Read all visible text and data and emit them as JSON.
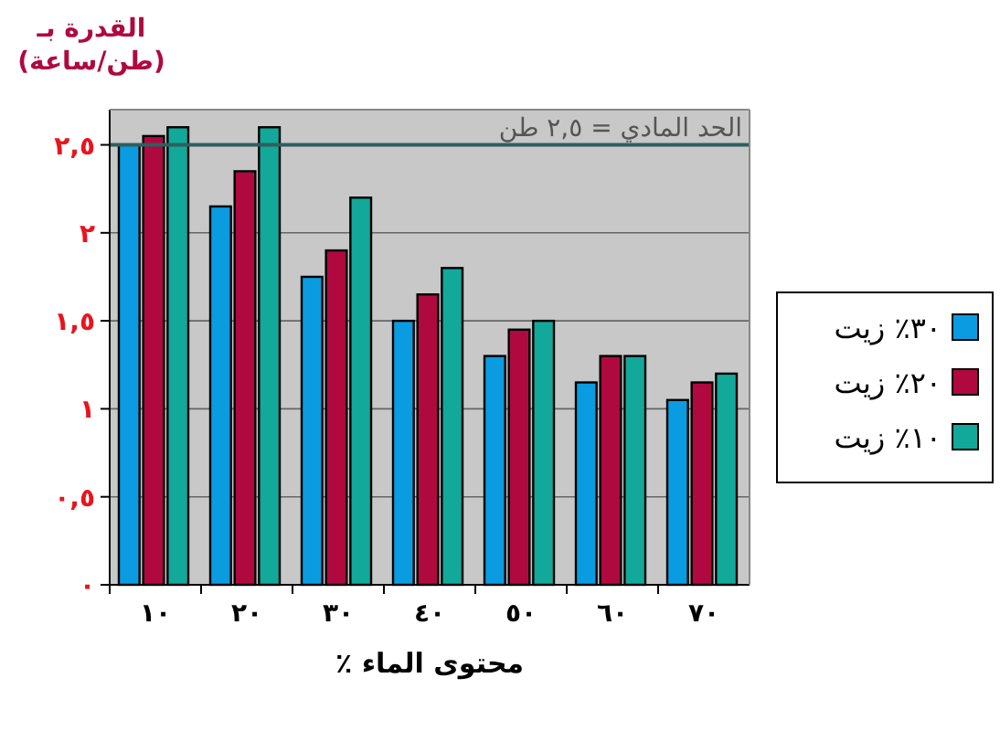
{
  "chart_data": {
    "type": "bar",
    "ylabel": "القدرة بـ\n(طن/ساعة)",
    "xlabel": "محتوى الماء ٪",
    "categories": [
      "١٠",
      "٢٠",
      "٣٠",
      "٤٠",
      "٥٠",
      "٦٠",
      "٧٠"
    ],
    "series": [
      {
        "name": "٣٠٪ زيت",
        "color": "#0a9be0",
        "values": [
          2.5,
          2.15,
          1.75,
          1.5,
          1.3,
          1.15,
          1.05
        ]
      },
      {
        "name": "٢٠٪ زيت",
        "color": "#b0093f",
        "values": [
          2.55,
          2.35,
          1.9,
          1.65,
          1.45,
          1.3,
          1.15
        ]
      },
      {
        "name": "١٠٪ زيت",
        "color": "#12a89a",
        "values": [
          2.6,
          2.6,
          2.2,
          1.8,
          1.5,
          1.3,
          1.2
        ]
      }
    ],
    "ylim": [
      0,
      2.7
    ],
    "yticks": [
      {
        "value": 0,
        "label": "٠"
      },
      {
        "value": 0.5,
        "label": "٠,٥"
      },
      {
        "value": 1,
        "label": "١"
      },
      {
        "value": 1.5,
        "label": "١,٥"
      },
      {
        "value": 2,
        "label": "٢"
      },
      {
        "value": 2.5,
        "label": "٢,٥"
      }
    ],
    "grid": "y",
    "legend": "right",
    "ref_lines": [
      {
        "axis": "y",
        "value": 2.5,
        "label": "الحد المادي = ٢,٥ طن",
        "color": "#2f5f5f"
      }
    ]
  }
}
